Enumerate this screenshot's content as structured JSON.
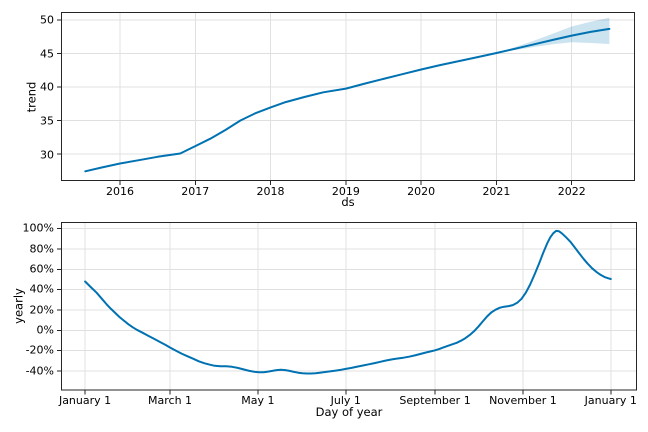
{
  "figure": {
    "background": "#ffffff"
  },
  "colors": {
    "line": "#0072B2",
    "band": "rgba(0,114,178,0.2)",
    "grid": "#e0e0e0",
    "spine": "#262626",
    "text": "#000000"
  },
  "chart_data": [
    {
      "type": "line",
      "name": "trend",
      "xlabel": "ds",
      "ylabel": "trend",
      "grid": true,
      "legend_position": null,
      "xlim": [
        2015.217,
        2022.84
      ],
      "ylim": [
        26.0,
        51.16
      ],
      "xticks": {
        "values": [
          2016,
          2017,
          2018,
          2019,
          2020,
          2021,
          2022
        ],
        "labels": [
          "2016",
          "2017",
          "2018",
          "2019",
          "2020",
          "2021",
          "2022"
        ]
      },
      "yticks": {
        "values": [
          30,
          35,
          40,
          45,
          50
        ],
        "labels": [
          "30",
          "35",
          "40",
          "45",
          "50"
        ]
      },
      "series": [
        {
          "name": "trend",
          "x": [
            2015.54,
            2015.75,
            2016.0,
            2016.25,
            2016.5,
            2016.8,
            2017.0,
            2017.2,
            2017.4,
            2017.6,
            2017.8,
            2018.0,
            2018.2,
            2018.45,
            2018.7,
            2019.0,
            2019.25,
            2019.5,
            2019.75,
            2020.0,
            2020.25,
            2020.5,
            2020.75,
            2021.0,
            2021.25,
            2021.5,
            2021.75,
            2022.0,
            2022.25,
            2022.5
          ],
          "y": [
            27.45,
            28.0,
            28.6,
            29.1,
            29.6,
            30.1,
            31.2,
            32.3,
            33.6,
            35.0,
            36.1,
            36.95,
            37.75,
            38.5,
            39.2,
            39.75,
            40.5,
            41.2,
            41.9,
            42.6,
            43.25,
            43.85,
            44.45,
            45.05,
            45.7,
            46.35,
            47.0,
            47.65,
            48.2,
            48.65
          ]
        }
      ],
      "band": {
        "x": [
          2021.0,
          2021.25,
          2021.5,
          2021.75,
          2022.0,
          2022.25,
          2022.5
        ],
        "upper": [
          45.05,
          45.95,
          46.9,
          47.95,
          49.0,
          49.7,
          50.3
        ],
        "lower": [
          45.05,
          45.5,
          45.95,
          46.35,
          46.65,
          46.55,
          46.4
        ]
      }
    },
    {
      "type": "line",
      "name": "yearly",
      "xlabel": "Day of year",
      "ylabel": "yearly",
      "grid": true,
      "legend_position": null,
      "xlim": [
        -16.7,
        383.2
      ],
      "ylim": [
        -59.1,
        106.6
      ],
      "xticks": {
        "values": [
          0,
          59,
          120,
          181,
          243,
          304,
          365
        ],
        "labels": [
          "January 1",
          "March 1",
          "May 1",
          "July 1",
          "September 1",
          "November 1",
          "January 1"
        ]
      },
      "yticks": {
        "values": [
          -40,
          -20,
          0,
          20,
          40,
          60,
          80,
          100
        ],
        "labels": [
          "-40%",
          "-20%",
          "0%",
          "20%",
          "40%",
          "60%",
          "80%",
          "100%"
        ]
      },
      "series": [
        {
          "name": "yearly",
          "x": [
            0,
            4,
            8,
            12,
            15,
            18,
            21,
            24,
            27,
            30,
            33,
            36,
            40,
            44,
            48,
            52,
            56,
            59,
            63,
            67,
            71,
            75,
            79,
            83,
            87,
            90,
            94,
            98,
            102,
            106,
            110,
            114,
            118,
            121,
            124,
            127,
            130,
            133,
            136,
            139,
            142,
            145,
            148,
            151,
            154,
            157,
            160,
            163,
            166,
            170,
            174,
            178,
            181,
            185,
            189,
            193,
            197,
            201,
            205,
            209,
            213,
            217,
            221,
            225,
            229,
            233,
            237,
            240,
            243,
            246,
            249,
            252,
            255,
            258,
            261,
            264,
            267,
            270,
            273,
            276,
            279,
            282,
            285,
            288,
            291,
            294,
            297,
            300,
            303,
            306,
            309,
            312,
            315,
            318,
            321,
            323,
            325,
            327,
            329,
            331,
            334,
            337,
            340,
            343,
            346,
            349,
            352,
            355,
            358,
            361,
            363,
            365
          ],
          "y": [
            48,
            42.5,
            37,
            30.5,
            25.5,
            21,
            17,
            13,
            9.5,
            6,
            3,
            0.5,
            -2.5,
            -5.5,
            -8.5,
            -11.5,
            -14.5,
            -17,
            -20,
            -23,
            -25.5,
            -28,
            -30.5,
            -32.5,
            -34,
            -35,
            -35.5,
            -35.5,
            -36,
            -37,
            -38.5,
            -40,
            -41,
            -41.4,
            -41.3,
            -40.7,
            -40,
            -39.2,
            -38.8,
            -39.2,
            -40,
            -41,
            -41.8,
            -42.3,
            -42.6,
            -42.6,
            -42.3,
            -41.8,
            -41.2,
            -40.5,
            -39.7,
            -38.8,
            -38,
            -37,
            -35.8,
            -34.7,
            -33.5,
            -32.3,
            -31,
            -29.8,
            -28.7,
            -27.8,
            -27,
            -26,
            -24.7,
            -23.3,
            -21.8,
            -20.8,
            -19.7,
            -18.3,
            -16.8,
            -15.3,
            -13.8,
            -12.3,
            -10.3,
            -7.8,
            -4.8,
            -1,
            3.5,
            8.5,
            13.5,
            17.5,
            20.3,
            22.2,
            23.2,
            23.8,
            24.8,
            27,
            31,
            37,
            45,
            54.5,
            65,
            76,
            86,
            91.5,
            95.5,
            97.8,
            97.5,
            95.5,
            91.5,
            87,
            81.5,
            76,
            70.5,
            65.5,
            61,
            57.5,
            54.5,
            52.3,
            51.3,
            50.5
          ]
        }
      ],
      "band": null
    }
  ]
}
